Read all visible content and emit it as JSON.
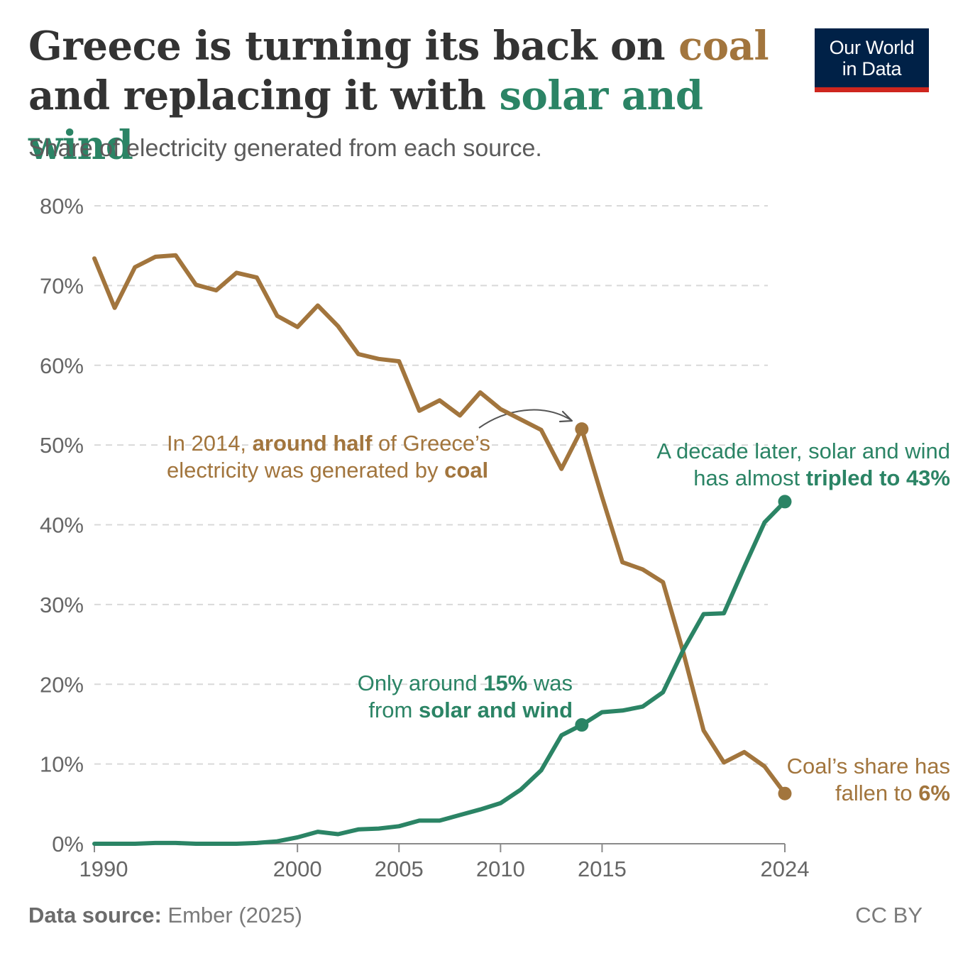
{
  "title": {
    "line1_pre": "Greece is turning its back on ",
    "line1_coal": "coal",
    "line2_pre": "and replacing it with ",
    "line2_solar": "solar and wind"
  },
  "subtitle": "Share of electricity generated from each source.",
  "logo": {
    "line1": "Our World",
    "line2": "in Data"
  },
  "footer": {
    "source_label": "Data source:",
    "source_value": "Ember (2025)",
    "license": "CC BY"
  },
  "colors": {
    "coal": "#a2753d",
    "solar_wind": "#2b8465",
    "grid": "#d9d9d9",
    "axis_text": "#666666"
  },
  "annotations": {
    "coal_2014": {
      "a": "In 2014, ",
      "b": "around half",
      "c": " of Greece’s",
      "d": "electricity was generated by ",
      "e": "coal"
    },
    "solar_2014": {
      "a": "Only around ",
      "b": "15%",
      "c": " was",
      "d": "from ",
      "e": "solar and wind"
    },
    "solar_2024": {
      "a": "A decade later, solar and wind",
      "b": "has almost ",
      "c": "tripled to 43%"
    },
    "coal_2024": {
      "a": "Coal’s share has",
      "b": "fallen to ",
      "c": "6%"
    }
  },
  "chart_data": {
    "type": "line",
    "x": [
      1990,
      1991,
      1992,
      1993,
      1994,
      1995,
      1996,
      1997,
      1998,
      1999,
      2000,
      2001,
      2002,
      2003,
      2004,
      2005,
      2006,
      2007,
      2008,
      2009,
      2010,
      2011,
      2012,
      2013,
      2014,
      2015,
      2016,
      2017,
      2018,
      2019,
      2020,
      2021,
      2022,
      2023,
      2024
    ],
    "series": [
      {
        "key": "coal",
        "color": "#a2753d",
        "values": [
          73.4,
          67.2,
          72.3,
          73.6,
          73.8,
          70.1,
          69.4,
          71.6,
          71.0,
          66.2,
          64.8,
          67.5,
          64.9,
          61.4,
          60.8,
          60.5,
          54.3,
          55.6,
          53.7,
          56.6,
          54.5,
          53.2,
          51.9,
          47.0,
          52.0,
          43.5,
          35.3,
          34.4,
          32.8,
          24.0,
          14.2,
          10.2,
          11.5,
          9.7,
          6.3
        ]
      },
      {
        "key": "solar_wind",
        "color": "#2b8465",
        "values": [
          0.0,
          0.0,
          0.0,
          0.1,
          0.1,
          0.0,
          0.0,
          0.0,
          0.1,
          0.3,
          0.8,
          1.5,
          1.2,
          1.8,
          1.9,
          2.2,
          2.9,
          2.9,
          3.6,
          4.3,
          5.1,
          6.8,
          9.2,
          13.6,
          14.9,
          16.5,
          16.7,
          17.2,
          19.0,
          24.3,
          28.8,
          28.9,
          34.7,
          40.3,
          42.9
        ]
      }
    ],
    "highlight_points": [
      {
        "series": "coal",
        "x": 2014,
        "y": 52.0
      },
      {
        "series": "solar_wind",
        "x": 2014,
        "y": 14.9
      },
      {
        "series": "solar_wind",
        "x": 2024,
        "y": 42.9
      },
      {
        "series": "coal",
        "x": 2024,
        "y": 6.3
      }
    ],
    "x_ticks": [
      1990,
      2000,
      2005,
      2010,
      2015,
      2024
    ],
    "y_ticks": [
      0,
      10,
      20,
      30,
      40,
      50,
      60,
      70,
      80
    ],
    "y_tick_labels": [
      "0%",
      "10%",
      "20%",
      "30%",
      "40%",
      "50%",
      "60%",
      "70%",
      "80%"
    ],
    "xlim": [
      1990,
      2024
    ],
    "ylim": [
      0,
      80
    ],
    "grid": true,
    "legend": "none"
  }
}
